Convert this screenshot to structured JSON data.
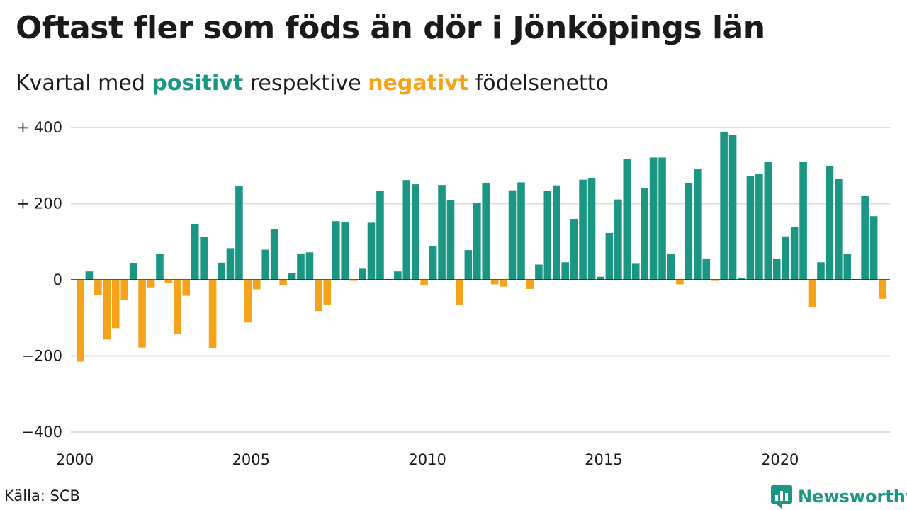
{
  "title": "Oftast fler som föds än dör i Jönköpings län",
  "subtitle": {
    "prefix": "Kvartal med ",
    "positive_word": "positivt",
    "middle": " respektive ",
    "negative_word": "negativt",
    "suffix": " födelsenetto"
  },
  "source": "Källa: SCB",
  "brand": {
    "name": "Newsworthy",
    "icon": "newsworthy-logo-icon"
  },
  "colors": {
    "positive": "#1b9683",
    "negative": "#f5a31a",
    "grid": "#dcdcdc",
    "baseline": "#222222"
  },
  "chart_data": {
    "type": "bar",
    "x_start": "2000 Q1",
    "x_end": "2022 Q4",
    "x_step": "quarter",
    "x_tick_labels": [
      "2000",
      "2005",
      "2010",
      "2015",
      "2020"
    ],
    "y_tick_labels": [
      "+ 400",
      "+ 200",
      "0",
      "−200",
      "−400"
    ],
    "y_ticks": [
      400,
      200,
      0,
      -200,
      -400
    ],
    "ylim": [
      -400,
      400
    ],
    "grid": true,
    "legend": "none",
    "values": [
      -215,
      22,
      -40,
      -157,
      -127,
      -53,
      43,
      -178,
      -20,
      68,
      -8,
      -142,
      -42,
      147,
      112,
      -180,
      45,
      83,
      247,
      -112,
      -25,
      79,
      132,
      -15,
      17,
      69,
      72,
      -82,
      -65,
      154,
      152,
      -3,
      29,
      150,
      234,
      2,
      22,
      262,
      251,
      -15,
      89,
      249,
      209,
      -65,
      78,
      202,
      253,
      -12,
      -18,
      235,
      256,
      -24,
      40,
      234,
      248,
      46,
      160,
      263,
      268,
      8,
      123,
      211,
      318,
      42,
      240,
      321,
      321,
      68,
      -12,
      254,
      291,
      56,
      -3,
      389,
      381,
      5,
      273,
      278,
      309,
      55,
      114,
      138,
      310,
      -72,
      46,
      298,
      266,
      68,
      2,
      220,
      167,
      -50
    ]
  }
}
